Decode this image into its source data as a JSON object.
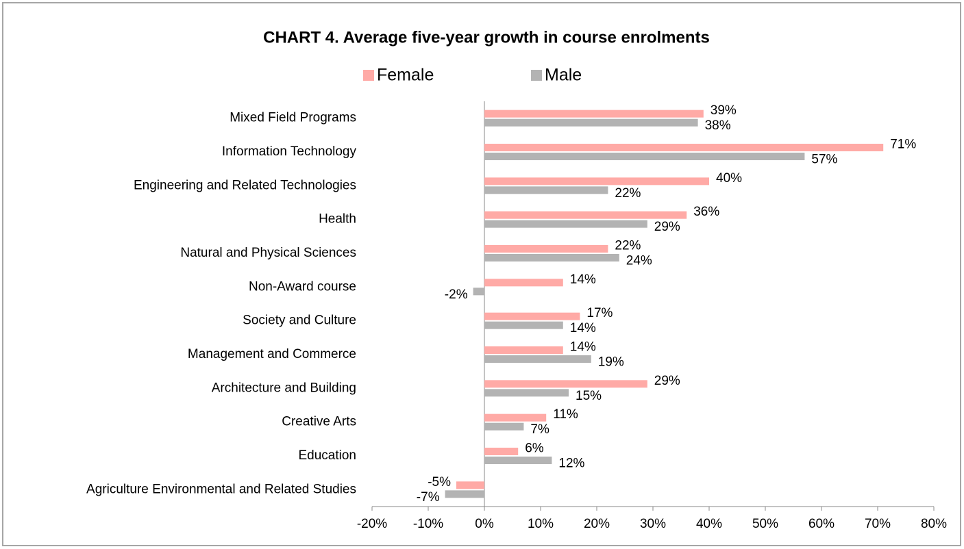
{
  "chart_data": {
    "type": "bar",
    "orientation": "horizontal",
    "title": "CHART 4. Average five-year growth in course enrolments",
    "categories": [
      "Mixed Field Programs",
      "Information Technology",
      "Engineering and Related Technologies",
      "Health",
      "Natural and Physical Sciences",
      "Non-Award course",
      "Society and Culture",
      "Management and Commerce",
      "Architecture and Building",
      "Creative Arts",
      "Education",
      "Agriculture Environmental and Related Studies"
    ],
    "series": [
      {
        "name": "Female",
        "color": "#ffaaa6",
        "values": [
          39,
          71,
          40,
          36,
          22,
          14,
          17,
          14,
          29,
          11,
          6,
          -5
        ],
        "value_labels": [
          "39%",
          "71%",
          "40%",
          "36%",
          "22%",
          "14%",
          "17%",
          "14%",
          "29%",
          "11%",
          "6%",
          "-5%"
        ]
      },
      {
        "name": "Male",
        "color": "#b3b3b3",
        "values": [
          38,
          57,
          22,
          29,
          24,
          -2,
          14,
          19,
          15,
          7,
          12,
          -7
        ],
        "value_labels": [
          "38%",
          "57%",
          "22%",
          "29%",
          "24%",
          "-2%",
          "14%",
          "19%",
          "15%",
          "7%",
          "12%",
          "-7%"
        ]
      }
    ],
    "xlim": [
      -20,
      80
    ],
    "xticks": [
      {
        "value": -20,
        "label": "-20%"
      },
      {
        "value": -10,
        "label": "-10%"
      },
      {
        "value": 0,
        "label": "0%"
      },
      {
        "value": 10,
        "label": "10%"
      },
      {
        "value": 20,
        "label": "20%"
      },
      {
        "value": 30,
        "label": "30%"
      },
      {
        "value": 40,
        "label": "40%"
      },
      {
        "value": 50,
        "label": "50%"
      },
      {
        "value": 60,
        "label": "60%"
      },
      {
        "value": 70,
        "label": "70%"
      },
      {
        "value": 80,
        "label": "80%"
      }
    ],
    "legend": "top",
    "grid": false
  }
}
